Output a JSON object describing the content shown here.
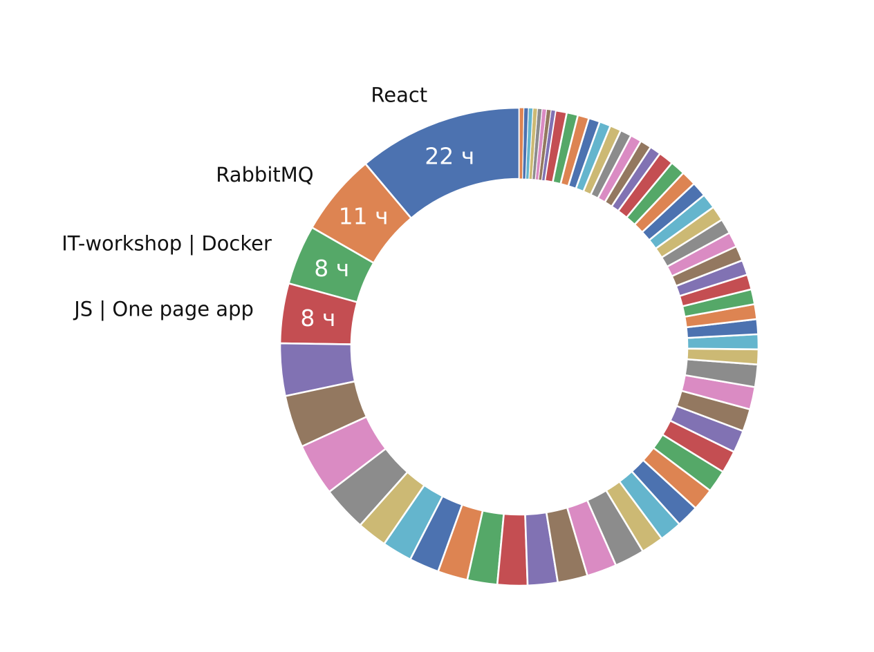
{
  "chart_data": {
    "type": "pie",
    "style": "donut",
    "unit": "ч",
    "start": "top",
    "direction": "counterclockwise",
    "palette": [
      "#4c72b0",
      "#dd8452",
      "#55a868",
      "#c44e52",
      "#8172b3",
      "#937860",
      "#da8bc3",
      "#8c8c8c",
      "#ccb974",
      "#64b5cd"
    ],
    "slices": [
      {
        "label": "React",
        "value": 22,
        "value_label": "22 ч"
      },
      {
        "label": "RabbitMQ",
        "value": 11,
        "value_label": "11 ч"
      },
      {
        "label": "IT-workshop | Docker",
        "value": 8,
        "value_label": "8 ч"
      },
      {
        "label": "JS | One page app",
        "value": 8,
        "value_label": "8 ч"
      },
      {
        "value": 7
      },
      {
        "value": 7
      },
      {
        "value": 7
      },
      {
        "value": 6
      },
      {
        "value": 4
      },
      {
        "value": 4
      },
      {
        "value": 4
      },
      {
        "value": 4
      },
      {
        "value": 4
      },
      {
        "value": 4
      },
      {
        "value": 4
      },
      {
        "value": 4
      },
      {
        "value": 4
      },
      {
        "value": 4
      },
      {
        "value": 3
      },
      {
        "value": 3
      },
      {
        "value": 3
      },
      {
        "value": 3
      },
      {
        "value": 3
      },
      {
        "value": 3
      },
      {
        "value": 3
      },
      {
        "value": 3
      },
      {
        "value": 3
      },
      {
        "value": 3
      },
      {
        "value": 2
      },
      {
        "value": 2
      },
      {
        "value": 2
      },
      {
        "value": 2
      },
      {
        "value": 2
      },
      {
        "value": 2
      },
      {
        "value": 2
      },
      {
        "value": 2
      },
      {
        "value": 2
      },
      {
        "value": 2
      },
      {
        "value": 2
      },
      {
        "value": 2
      },
      {
        "value": 2
      },
      {
        "value": 2
      },
      {
        "value": 2
      },
      {
        "value": 2
      },
      {
        "value": 1.5
      },
      {
        "value": 1.5
      },
      {
        "value": 1.5
      },
      {
        "value": 1.5
      },
      {
        "value": 1.5
      },
      {
        "value": 1.5
      },
      {
        "value": 1.5
      },
      {
        "value": 1.5
      },
      {
        "value": 1.5
      },
      {
        "value": 1.5
      },
      {
        "value": 0.6
      },
      {
        "value": 0.6
      },
      {
        "value": 0.6
      },
      {
        "value": 0.6
      },
      {
        "value": 0.6
      },
      {
        "value": 0.6
      },
      {
        "value": 0.6
      },
      {
        "value": 0.6
      }
    ]
  }
}
